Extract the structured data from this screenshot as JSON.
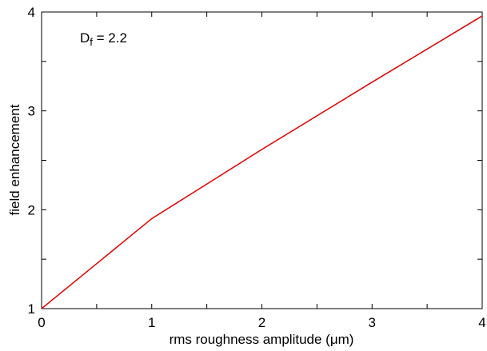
{
  "chart_data": {
    "type": "line",
    "title": "",
    "xlabel": "rms roughness amplitude (μm)",
    "ylabel": "field enhancement",
    "xlim": [
      0,
      4
    ],
    "ylim": [
      1,
      4
    ],
    "xticks": [
      0,
      1,
      2,
      3,
      4
    ],
    "yticks": [
      1,
      2,
      3,
      4
    ],
    "grid": false,
    "annotation": {
      "base": "D",
      "subscript": "f",
      "rest": " = 2.2"
    },
    "series": [
      {
        "color": "#e00000",
        "x": [
          0,
          1,
          2,
          3,
          4
        ],
        "y": [
          1.0,
          1.91,
          2.61,
          3.29,
          3.96
        ]
      }
    ]
  }
}
